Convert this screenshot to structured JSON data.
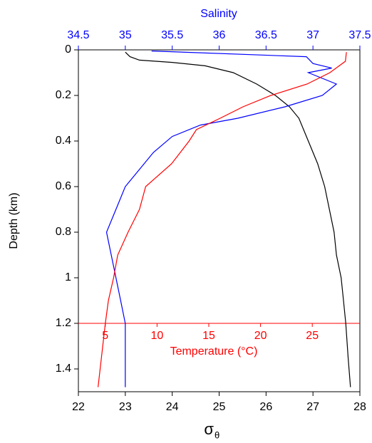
{
  "chart_data": {
    "type": "line",
    "title": "Salinity",
    "xlabel": "σ",
    "xlabel_subscript": "θ",
    "ylabel": "Depth (km)",
    "x3label": "Temperature (°C)",
    "xlim": [
      22,
      28
    ],
    "xticks": [
      22,
      23,
      24,
      25,
      26,
      27,
      28
    ],
    "x2lim": [
      34.5,
      37.5
    ],
    "x2ticks": [
      34.5,
      35,
      35.5,
      36,
      36.5,
      37,
      37.5
    ],
    "x2color": "#0000ff",
    "x3lim": [
      2.4,
      29.6
    ],
    "x3ticks": [
      5,
      10,
      15,
      20,
      25
    ],
    "x3color": "#ff0000",
    "ylim": [
      0,
      1.5
    ],
    "yticks": [
      0,
      0.2,
      0.4,
      0.6,
      0.8,
      1,
      1.2,
      1.4
    ],
    "y_inverted": true,
    "series": [
      {
        "color": "#000000",
        "axis": "x",
        "values": [
          23.0,
          23.1,
          23.3,
          24.0,
          24.7,
          25.3,
          25.8,
          26.2,
          26.5,
          26.7,
          26.9,
          27.1,
          27.25,
          27.35,
          27.45,
          27.5,
          27.6,
          27.65,
          27.7,
          27.75,
          27.8
        ],
        "depths": [
          0.01,
          0.03,
          0.045,
          0.055,
          0.07,
          0.1,
          0.15,
          0.2,
          0.25,
          0.3,
          0.4,
          0.5,
          0.6,
          0.7,
          0.8,
          0.9,
          1.0,
          1.1,
          1.2,
          1.35,
          1.48
        ]
      },
      {
        "color": "#0000ff",
        "axis": "x2",
        "values": [
          35.28,
          36.93,
          37.0,
          37.2,
          36.95,
          37.25,
          37.1,
          36.7,
          36.2,
          35.8,
          35.5,
          35.3,
          35.1,
          35.0,
          34.9,
          34.8,
          34.85,
          34.9,
          34.95,
          35.0,
          35.0
        ],
        "depths": [
          0.005,
          0.03,
          0.06,
          0.08,
          0.1,
          0.15,
          0.2,
          0.25,
          0.3,
          0.33,
          0.38,
          0.45,
          0.55,
          0.6,
          0.7,
          0.8,
          0.9,
          1.0,
          1.1,
          1.2,
          1.48
        ]
      },
      {
        "color": "#ff0000",
        "axis": "x3",
        "values": [
          28.3,
          28.2,
          26.7,
          24.5,
          21.0,
          18.3,
          16.1,
          13.8,
          13.1,
          11.4,
          8.9,
          8.3,
          7.2,
          6.2,
          5.8,
          5.3,
          5.0,
          4.3
        ],
        "depths": [
          0.01,
          0.05,
          0.1,
          0.15,
          0.2,
          0.25,
          0.3,
          0.35,
          0.4,
          0.5,
          0.6,
          0.7,
          0.8,
          0.9,
          1.0,
          1.1,
          1.2,
          1.48
        ]
      }
    ]
  }
}
